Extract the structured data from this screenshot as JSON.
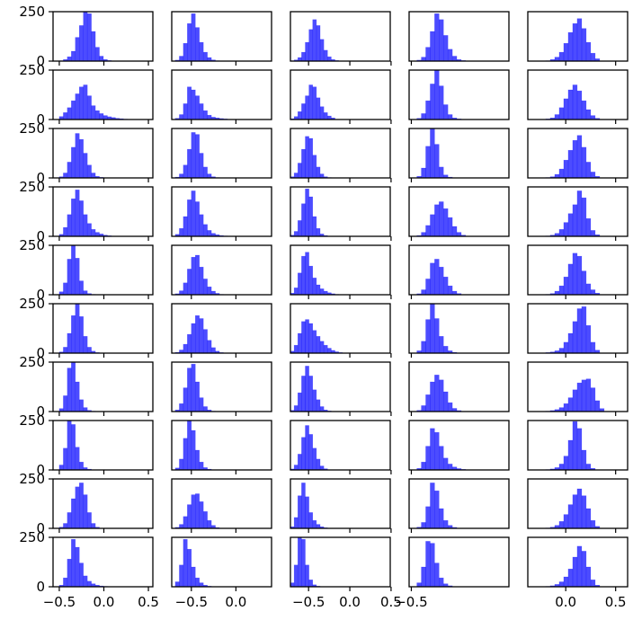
{
  "chart_data": {
    "type": "histogram-grid",
    "rows": 10,
    "cols": 5,
    "bar_color": "#0000ff",
    "bar_opacity": 0.7,
    "ylim": [
      0,
      250
    ],
    "yticks": [
      0,
      250
    ],
    "ytick_labels": [
      "0",
      "250"
    ],
    "columns": [
      {
        "xlim": [
          -0.57,
          0.55
        ],
        "xticks": [
          -0.5,
          0.0,
          0.5
        ],
        "xtick_labels": [
          "−0.5",
          "0.0",
          "0.5"
        ],
        "bin_start": -0.5,
        "bin_width": 0.045
      },
      {
        "xlim": [
          -0.72,
          0.4
        ],
        "xticks": [
          -0.5,
          0.0
        ],
        "xtick_labels": [
          "−0.5",
          "0.0"
        ],
        "bin_start": -0.68,
        "bin_width": 0.045
      },
      {
        "xlim": [
          -0.72,
          0.49
        ],
        "xticks": [
          -0.5,
          0.0,
          0.5
        ],
        "xtick_labels": [
          "−0.5",
          "0.0",
          "0.5"
        ],
        "bin_start": -0.72,
        "bin_width": 0.045
      },
      {
        "xlim": [
          -0.52,
          0.38
        ],
        "xticks": [
          -0.5
        ],
        "xtick_labels": [
          "−0.5"
        ],
        "bin_start": -0.45,
        "bin_width": 0.04
      },
      {
        "xlim": [
          -0.38,
          0.62
        ],
        "xticks": [
          0.0,
          0.5
        ],
        "xtick_labels": [
          "0.0",
          "0.5"
        ],
        "bin_start": -0.2,
        "bin_width": 0.045
      }
    ],
    "panels": [
      [
        [
          2,
          8,
          22,
          50,
          120,
          180,
          260,
          240,
          150,
          70,
          25,
          8,
          3,
          1
        ],
        [
          5,
          25,
          90,
          190,
          240,
          170,
          95,
          45,
          18,
          6,
          2,
          1
        ],
        [
          2,
          6,
          18,
          45,
          95,
          160,
          210,
          180,
          110,
          55,
          22,
          8,
          3,
          1
        ],
        [
          5,
          20,
          70,
          150,
          240,
          210,
          130,
          60,
          25,
          8,
          3,
          1
        ],
        [
          2,
          8,
          20,
          45,
          90,
          145,
          190,
          215,
          165,
          95,
          40,
          12
        ]
      ],
      [
        [
          15,
          35,
          60,
          95,
          130,
          165,
          175,
          120,
          70,
          45,
          30,
          20,
          14,
          10,
          6,
          4,
          2,
          1
        ],
        [
          6,
          25,
          80,
          165,
          150,
          120,
          80,
          45,
          22,
          12,
          8,
          5,
          3,
          1
        ],
        [
          4,
          15,
          40,
          80,
          120,
          175,
          165,
          110,
          65,
          35,
          18,
          8
        ],
        [
          6,
          30,
          95,
          180,
          260,
          170,
          75,
          25,
          8,
          3
        ],
        [
          3,
          8,
          25,
          60,
          105,
          150,
          175,
          145,
          95,
          50,
          20,
          6
        ]
      ],
      [
        [
          6,
          25,
          80,
          155,
          225,
          195,
          125,
          65,
          25,
          8,
          3,
          1
        ],
        [
          4,
          20,
          65,
          145,
          230,
          220,
          125,
          55,
          20,
          6,
          2
        ],
        [
          6,
          25,
          75,
          145,
          210,
          200,
          115,
          55,
          20,
          6,
          2
        ],
        [
          8,
          50,
          160,
          260,
          170,
          55,
          15,
          4
        ],
        [
          2,
          6,
          18,
          45,
          90,
          140,
          190,
          215,
          155,
          80,
          30,
          8
        ]
      ],
      [
        [
          10,
          45,
          110,
          190,
          235,
          180,
          110,
          65,
          35,
          20,
          12,
          6,
          3,
          1
        ],
        [
          10,
          40,
          100,
          185,
          230,
          175,
          110,
          60,
          30,
          15,
          8,
          4,
          2,
          1
        ],
        [
          6,
          25,
          80,
          165,
          240,
          200,
          100,
          40,
          12,
          4,
          1
        ],
        [
          4,
          20,
          55,
          110,
          160,
          175,
          140,
          95,
          50,
          20,
          6
        ],
        [
          2,
          6,
          15,
          35,
          70,
          115,
          160,
          230,
          195,
          90,
          30,
          8
        ]
      ],
      [
        [
          15,
          60,
          180,
          260,
          185,
          70,
          20,
          6,
          2
        ],
        [
          5,
          20,
          60,
          130,
          190,
          200,
          140,
          80,
          40,
          18,
          7,
          2
        ],
        [
          8,
          35,
          110,
          195,
          215,
          145,
          85,
          50,
          30,
          18,
          10,
          5,
          2
        ],
        [
          5,
          25,
          80,
          160,
          180,
          140,
          90,
          45,
          18,
          6
        ],
        [
          2,
          6,
          18,
          45,
          90,
          155,
          210,
          195,
          120,
          55,
          25,
          8
        ]
      ],
      [
        [
          6,
          30,
          100,
          190,
          255,
          185,
          85,
          30,
          10,
          3
        ],
        [
          4,
          16,
          45,
          95,
          150,
          190,
          175,
          120,
          65,
          28,
          10,
          3
        ],
        [
          10,
          40,
          100,
          160,
          170,
          150,
          115,
          85,
          60,
          40,
          25,
          14,
          7,
          3,
          1
        ],
        [
          12,
          60,
          170,
          250,
          175,
          85,
          35,
          12,
          4
        ],
        [
          3,
          6,
          12,
          25,
          55,
          100,
          160,
          225,
          235,
          140,
          55,
          15
        ]
      ],
      [
        [
          15,
          80,
          220,
          255,
          150,
          60,
          20,
          6,
          2
        ],
        [
          8,
          40,
          120,
          220,
          240,
          150,
          70,
          25,
          8,
          2
        ],
        [
          6,
          30,
          95,
          180,
          230,
          180,
          110,
          60,
          25,
          8,
          3
        ],
        [
          6,
          30,
          85,
          150,
          185,
          160,
          100,
          45,
          16,
          5
        ],
        [
          2,
          5,
          10,
          20,
          40,
          70,
          110,
          145,
          160,
          165,
          120,
          55,
          15
        ]
      ],
      [
        [
          25,
          110,
          255,
          230,
          115,
          40,
          12,
          4
        ],
        [
          10,
          55,
          160,
          250,
          200,
          100,
          40,
          12,
          4
        ],
        [
          5,
          25,
          80,
          165,
          225,
          180,
          110,
          55,
          20,
          6
        ],
        [
          8,
          40,
          120,
          210,
          190,
          120,
          60,
          30,
          15,
          7,
          3,
          1
        ],
        [
          2,
          5,
          12,
          30,
          70,
          150,
          245,
          210,
          100,
          30,
          8
        ]
      ],
      [
        [
          6,
          25,
          80,
          150,
          210,
          230,
          170,
          80,
          25,
          6
        ],
        [
          5,
          20,
          60,
          120,
          170,
          175,
          135,
          85,
          40,
          15,
          4
        ],
        [
          8,
          55,
          165,
          230,
          160,
          80,
          40,
          20,
          8,
          3
        ],
        [
          6,
          30,
          110,
          230,
          190,
          100,
          40,
          15,
          5
        ],
        [
          2,
          6,
          15,
          35,
          70,
          120,
          170,
          200,
          165,
          100,
          40,
          10
        ]
      ],
      [
        [
          8,
          45,
          140,
          240,
          200,
          120,
          55,
          28,
          15,
          8,
          4,
          2,
          1
        ],
        [
          25,
          110,
          240,
          190,
          100,
          45,
          20,
          8,
          3,
          1
        ],
        [
          20,
          110,
          250,
          240,
          110,
          35,
          10,
          3
        ],
        [
          20,
          100,
          230,
          220,
          120,
          45,
          15,
          5
        ],
        [
          2,
          5,
          12,
          25,
          50,
          90,
          150,
          205,
          180,
          100,
          35,
          8
        ]
      ]
    ]
  }
}
